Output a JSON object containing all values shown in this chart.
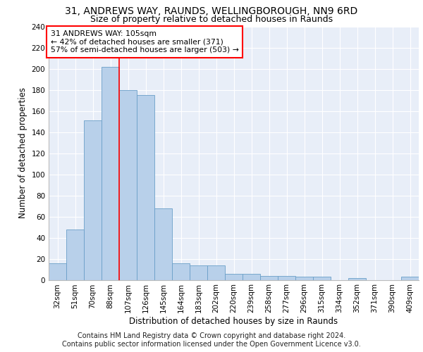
{
  "title1": "31, ANDREWS WAY, RAUNDS, WELLINGBOROUGH, NN9 6RD",
  "title2": "Size of property relative to detached houses in Raunds",
  "xlabel": "Distribution of detached houses by size in Raunds",
  "ylabel": "Number of detached properties",
  "categories": [
    "32sqm",
    "51sqm",
    "70sqm",
    "88sqm",
    "107sqm",
    "126sqm",
    "145sqm",
    "164sqm",
    "183sqm",
    "202sqm",
    "220sqm",
    "239sqm",
    "258sqm",
    "277sqm",
    "296sqm",
    "315sqm",
    "334sqm",
    "352sqm",
    "371sqm",
    "390sqm",
    "409sqm"
  ],
  "values": [
    16,
    48,
    151,
    202,
    180,
    175,
    68,
    16,
    14,
    14,
    6,
    6,
    4,
    4,
    3,
    3,
    0,
    2,
    0,
    0,
    3
  ],
  "bar_color": "#b8d0ea",
  "bar_edge_color": "#6a9fc8",
  "vline_position": 3.5,
  "vline_color": "red",
  "annotation_text": "31 ANDREWS WAY: 105sqm\n← 42% of detached houses are smaller (371)\n57% of semi-detached houses are larger (503) →",
  "annotation_box_color": "white",
  "annotation_box_edge": "red",
  "ylim": [
    0,
    240
  ],
  "yticks": [
    0,
    20,
    40,
    60,
    80,
    100,
    120,
    140,
    160,
    180,
    200,
    220,
    240
  ],
  "background_color": "#e8eef8",
  "footer_line1": "Contains HM Land Registry data © Crown copyright and database right 2024.",
  "footer_line2": "Contains public sector information licensed under the Open Government Licence v3.0.",
  "title_fontsize": 10,
  "subtitle_fontsize": 9,
  "axis_label_fontsize": 8.5,
  "tick_fontsize": 7.5,
  "footer_fontsize": 7
}
